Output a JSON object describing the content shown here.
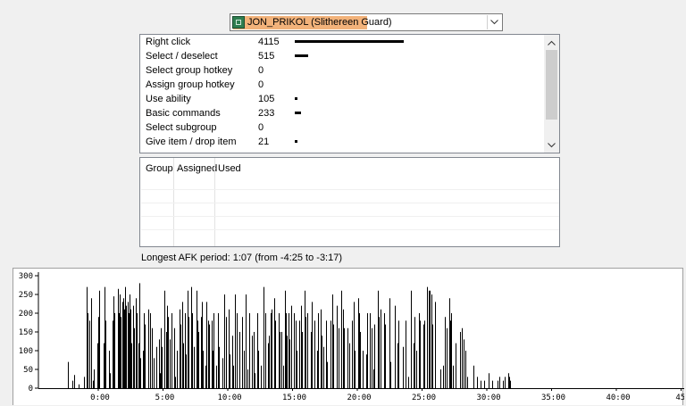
{
  "player_select": {
    "selected": "JON_PRIKOL (Slithereen Guard)",
    "icon": "hero-portrait-icon"
  },
  "actions": [
    {
      "label": "Right click",
      "count": "4115",
      "value": 4115
    },
    {
      "label": "Select / deselect",
      "count": "515",
      "value": 515
    },
    {
      "label": "Select group hotkey",
      "count": "0",
      "value": 0
    },
    {
      "label": "Assign group hotkey",
      "count": "0",
      "value": 0
    },
    {
      "label": "Use ability",
      "count": "105",
      "value": 105
    },
    {
      "label": "Basic commands",
      "count": "233",
      "value": 233
    },
    {
      "label": "Select subgroup",
      "count": "0",
      "value": 0
    },
    {
      "label": "Give item / drop item",
      "count": "21",
      "value": 21
    }
  ],
  "group_table": {
    "columns": [
      "Group",
      "Assigned",
      "Used"
    ],
    "rows": []
  },
  "afk": {
    "text": "Longest AFK period: 1:07 (from -4:25 to -3:17)"
  },
  "chart_data": {
    "type": "bar",
    "title": "",
    "xlabel": "",
    "ylabel": "",
    "ylim": [
      0,
      300
    ],
    "yticks": [
      0,
      50,
      100,
      150,
      200,
      250,
      300
    ],
    "xtick_labels": [
      "0:00",
      "5:00",
      "10:00",
      "15:00",
      "20:00",
      "25:00",
      "30:00",
      "35:00",
      "40:00",
      "45:"
    ],
    "xtick_minutes": [
      0,
      5,
      10,
      15,
      20,
      25,
      30,
      35,
      40,
      45
    ],
    "x_start_minutes": -2.5,
    "x_step_minutes": 0.0833,
    "bar_color": "#000000",
    "values": [
      0,
      0,
      70,
      0,
      0,
      0,
      20,
      0,
      35,
      0,
      0,
      0,
      10,
      0,
      0,
      0,
      0,
      30,
      0,
      270,
      200,
      0,
      180,
      240,
      0,
      20,
      50,
      0,
      0,
      120,
      190,
      260,
      0,
      0,
      0,
      120,
      270,
      180,
      0,
      0,
      100,
      40,
      0,
      180,
      245,
      200,
      0,
      0,
      265,
      200,
      250,
      190,
      230,
      240,
      210,
      270,
      220,
      230,
      200,
      250,
      210,
      120,
      220,
      160,
      0,
      240,
      200,
      120,
      280,
      80,
      0,
      100,
      200,
      170,
      0,
      0,
      210,
      0,
      200,
      0,
      160,
      80,
      0,
      0,
      110,
      0,
      130,
      40,
      160,
      110,
      0,
      260,
      0,
      150,
      220,
      190,
      130,
      0,
      200,
      0,
      160,
      30,
      0,
      100,
      0,
      210,
      170,
      0,
      230,
      120,
      200,
      90,
      0,
      260,
      190,
      0,
      270,
      200,
      0,
      110,
      0,
      260,
      180,
      150,
      0,
      190,
      230,
      100,
      0,
      60,
      230,
      0,
      180,
      170,
      0,
      180,
      100,
      200,
      0,
      60,
      0,
      200,
      110,
      0,
      0,
      80,
      0,
      250,
      190,
      0,
      0,
      210,
      90,
      0,
      140,
      60,
      0,
      250,
      200,
      0,
      0,
      150,
      0,
      190,
      0,
      100,
      0,
      250,
      50,
      0,
      200,
      0,
      140,
      0,
      150,
      40,
      0,
      200,
      100,
      0,
      0,
      60,
      0,
      270,
      0,
      200,
      0,
      120,
      140,
      0,
      200,
      210,
      0,
      240,
      180,
      0,
      0,
      200,
      150,
      0,
      150,
      60,
      0,
      260,
      200,
      140,
      200,
      130,
      0,
      220,
      0,
      200,
      0,
      180,
      100,
      0,
      180,
      0,
      220,
      150,
      0,
      260,
      190,
      0,
      200,
      0,
      0,
      150,
      230,
      0,
      180,
      0,
      0,
      100,
      200,
      0,
      210,
      140,
      0,
      110,
      0,
      180,
      70,
      0,
      0,
      180,
      0,
      250,
      170,
      0,
      0,
      220,
      0,
      160,
      0,
      260,
      0,
      210,
      160,
      0,
      0,
      160,
      0,
      120,
      0,
      180,
      0,
      230,
      100,
      0,
      0,
      240,
      200,
      150,
      0,
      100,
      0,
      0,
      90,
      200,
      0,
      0,
      200,
      160,
      0,
      50,
      170,
      0,
      0,
      260,
      190,
      0,
      210,
      0,
      0,
      200,
      170,
      0,
      0,
      0,
      240,
      70,
      0,
      0,
      0,
      220,
      0,
      120,
      180,
      0,
      0,
      0,
      110,
      0,
      0,
      180,
      0,
      30,
      0,
      0,
      260,
      0,
      120,
      190,
      0,
      100,
      0,
      200,
      180,
      0,
      0,
      170,
      180,
      0,
      0,
      270,
      260,
      260,
      0,
      250,
      170,
      0,
      230,
      0,
      0,
      0,
      0,
      50,
      0,
      0,
      60,
      190,
      0,
      160,
      0,
      240,
      180,
      200,
      0,
      60,
      0,
      120,
      0,
      0,
      0,
      150,
      0,
      160,
      0,
      130,
      100,
      0,
      30,
      0,
      0,
      0,
      0,
      0,
      60,
      0,
      0,
      30,
      0,
      0,
      20,
      0,
      0,
      0,
      20,
      0,
      0,
      0,
      40,
      0,
      0,
      20,
      0,
      0,
      0,
      0,
      20,
      0,
      30,
      0,
      0,
      20,
      0,
      30,
      0,
      0,
      40,
      30,
      20,
      0
    ]
  }
}
